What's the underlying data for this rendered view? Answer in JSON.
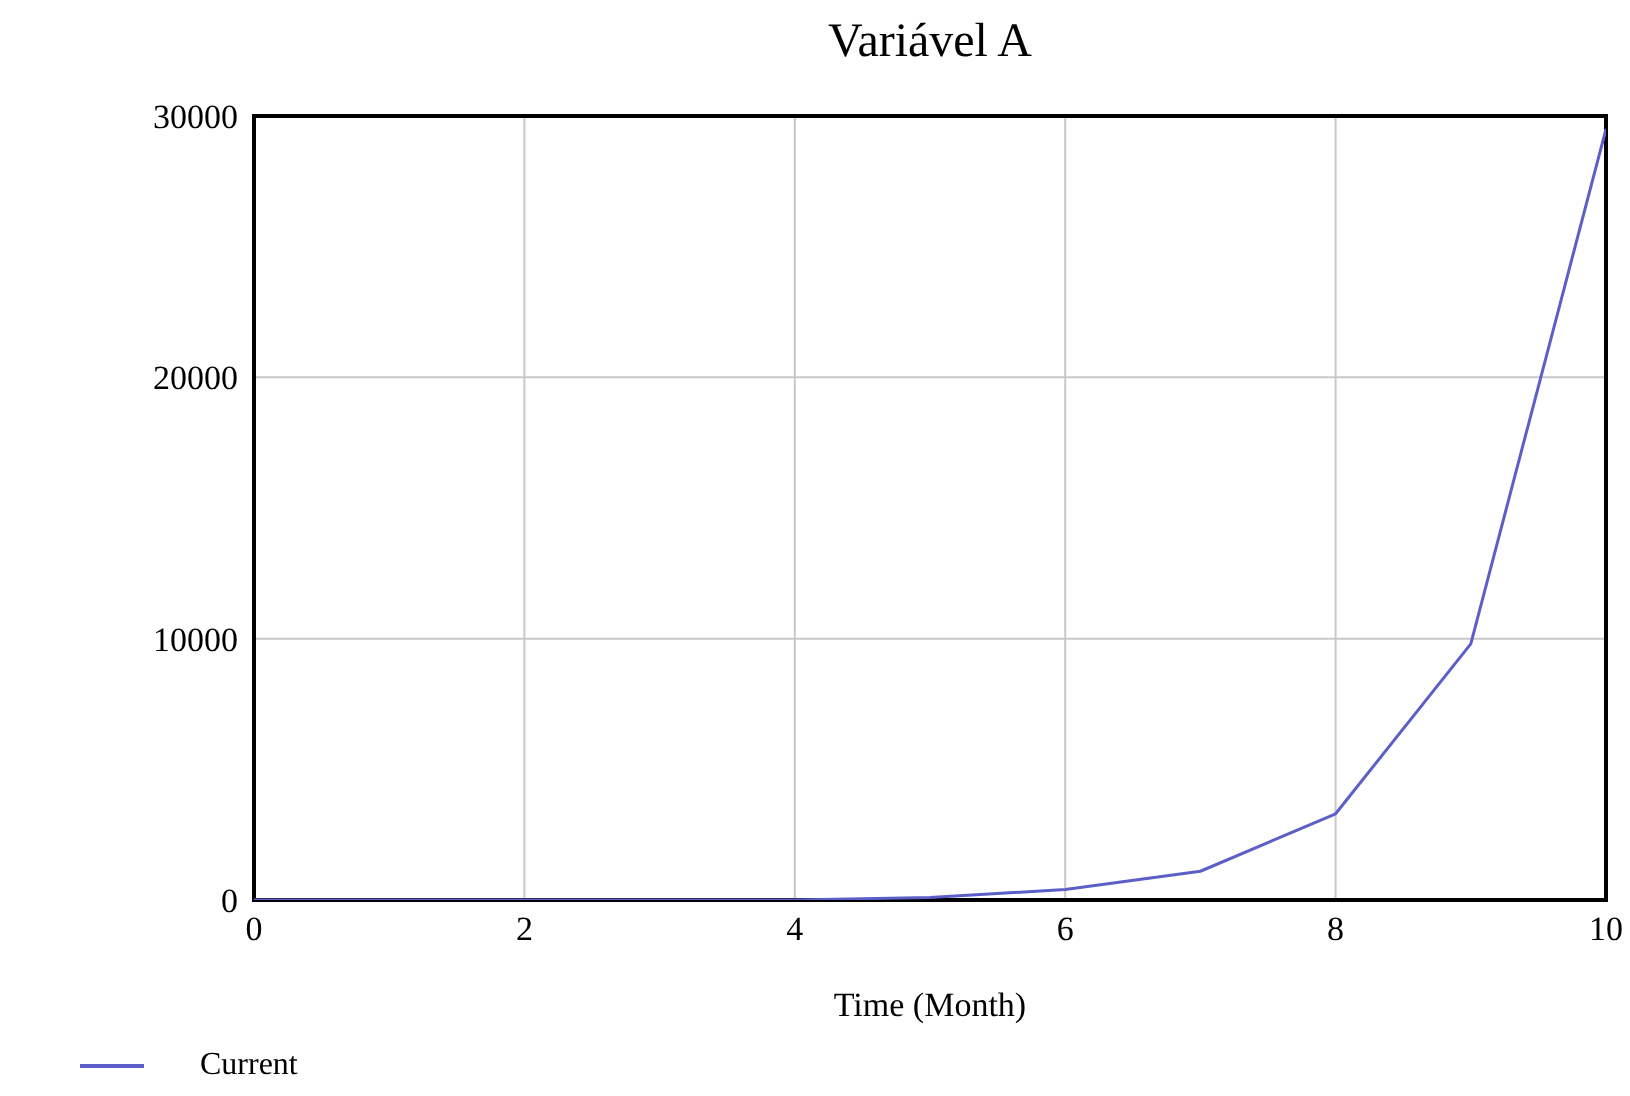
{
  "chart_data": {
    "type": "line",
    "title": "Variável A",
    "xlabel": "Time (Month)",
    "x": [
      0,
      1,
      2,
      3,
      4,
      5,
      6,
      7,
      8,
      9,
      10
    ],
    "series": [
      {
        "name": "Current",
        "color": "#5b5fc7",
        "values": [
          0,
          0,
          0,
          0,
          0,
          100,
          400,
          1100,
          3300,
          9800,
          29500
        ]
      }
    ],
    "xlim": [
      0,
      10
    ],
    "xticks": [
      0,
      2,
      4,
      6,
      8,
      10
    ],
    "ylim": [
      0,
      30000
    ],
    "yticks": [
      0,
      10000,
      20000,
      30000
    ],
    "grid": true,
    "legend": "bottom left",
    "marker": "none",
    "line_style": "solid"
  }
}
